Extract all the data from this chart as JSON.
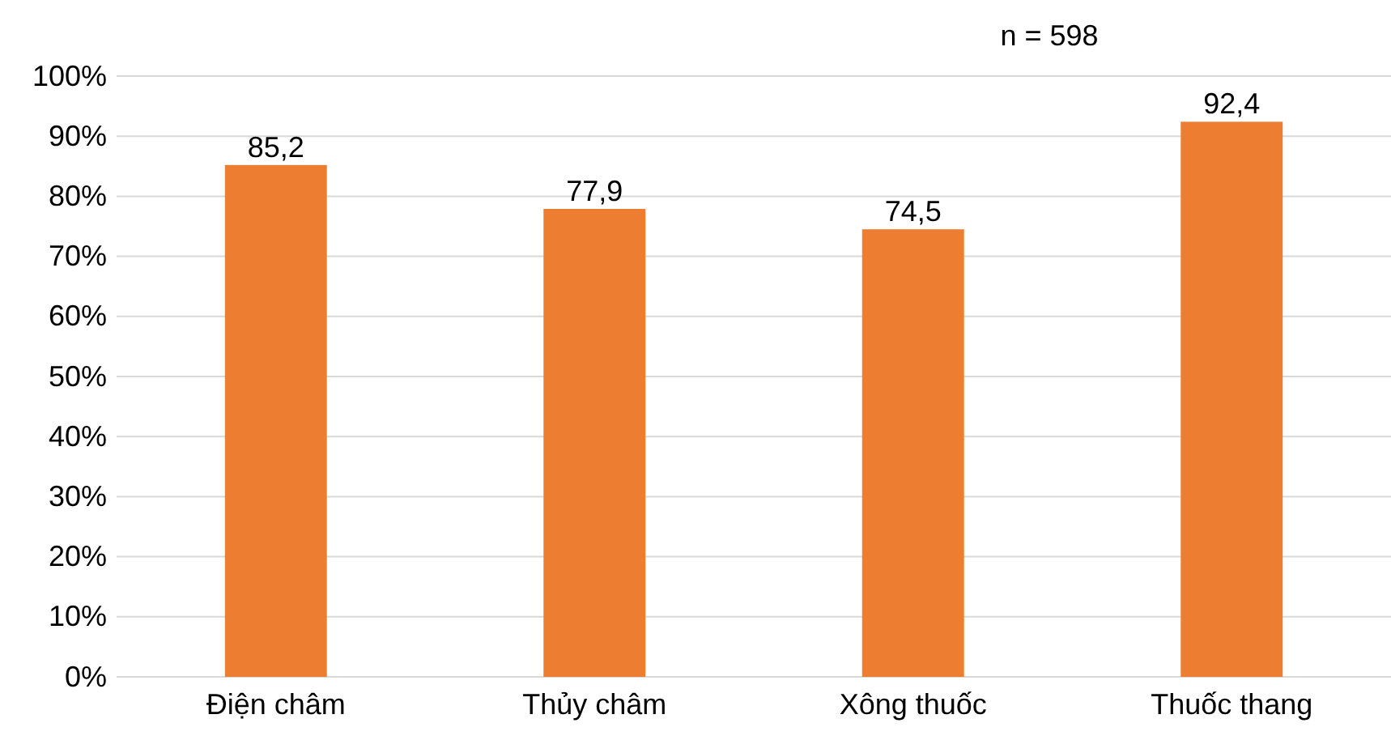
{
  "chart_data": {
    "type": "bar",
    "categories": [
      "Điện châm",
      "Thủy châm",
      "Xông thuốc",
      "Thuốc thang"
    ],
    "values": [
      85.2,
      77.9,
      74.5,
      92.4
    ],
    "value_labels": [
      "85,2",
      "77,9",
      "74,5",
      "92,4"
    ],
    "color": "#ed7d31",
    "ylim": [
      0,
      100
    ],
    "yticks": [
      {
        "value": 0,
        "label": "0%"
      },
      {
        "value": 10,
        "label": "10%"
      },
      {
        "value": 20,
        "label": "20%"
      },
      {
        "value": 30,
        "label": "30%"
      },
      {
        "value": 40,
        "label": "40%"
      },
      {
        "value": 50,
        "label": "50%"
      },
      {
        "value": 60,
        "label": "60%"
      },
      {
        "value": 70,
        "label": "70%"
      },
      {
        "value": 80,
        "label": "80%"
      },
      {
        "value": 90,
        "label": "90%"
      },
      {
        "value": 100,
        "label": "100%"
      }
    ],
    "grid": "y",
    "annotations": [
      "n = 598"
    ]
  }
}
